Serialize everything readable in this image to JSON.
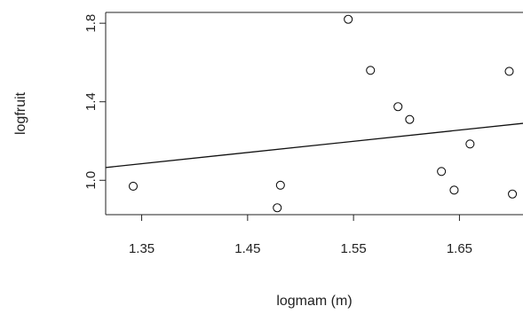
{
  "chart_data": {
    "type": "scatter",
    "xlabel": "logmam (m)",
    "ylabel": "logfruit",
    "xlim": [
      1.316,
      1.71
    ],
    "ylim": [
      0.825,
      1.855
    ],
    "xticks": [
      1.35,
      1.45,
      1.55,
      1.65
    ],
    "xtick_labels": [
      "1.35",
      "1.45",
      "1.55",
      "1.65"
    ],
    "yticks": [
      1.0,
      1.4,
      1.8
    ],
    "ytick_labels": [
      "1.0",
      "1.4",
      "1.8"
    ],
    "grid": false,
    "points": [
      {
        "x": 1.342,
        "y": 0.97
      },
      {
        "x": 1.478,
        "y": 0.86
      },
      {
        "x": 1.481,
        "y": 0.975
      },
      {
        "x": 1.545,
        "y": 1.82
      },
      {
        "x": 1.566,
        "y": 1.56
      },
      {
        "x": 1.592,
        "y": 1.375
      },
      {
        "x": 1.603,
        "y": 1.31
      },
      {
        "x": 1.633,
        "y": 1.045
      },
      {
        "x": 1.645,
        "y": 0.95
      },
      {
        "x": 1.66,
        "y": 1.185
      },
      {
        "x": 1.697,
        "y": 1.555
      },
      {
        "x": 1.7,
        "y": 0.93
      }
    ],
    "trendline": {
      "x": [
        1.316,
        1.71
      ],
      "y": [
        1.065,
        1.29
      ]
    }
  }
}
